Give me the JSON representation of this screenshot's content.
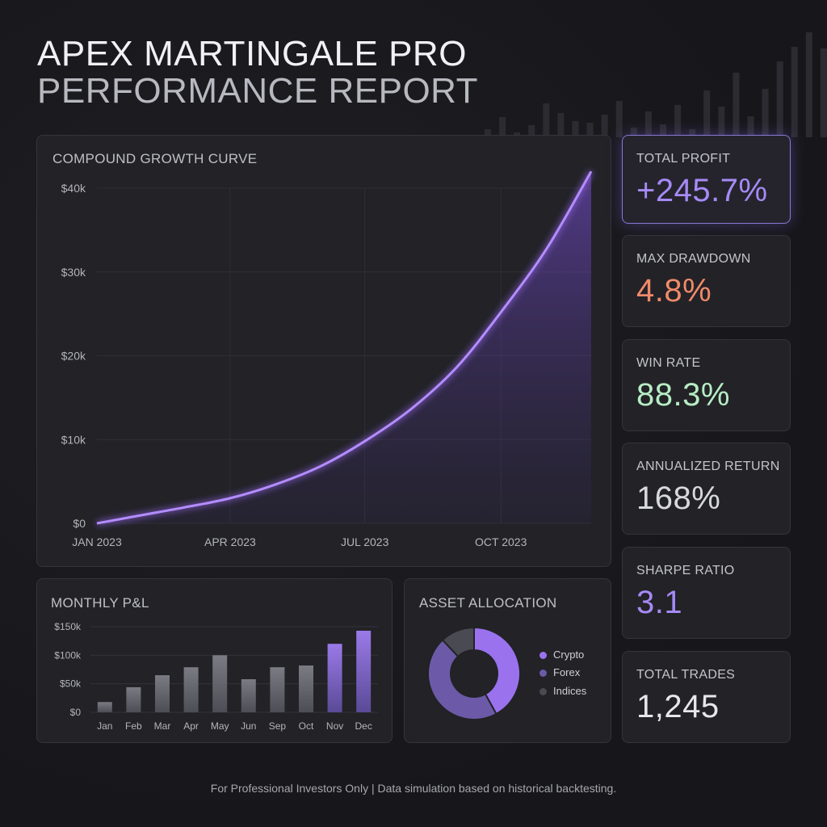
{
  "header": {
    "title_line1": "APEX MARTINGALE PRO",
    "title_line2": "PERFORMANCE REPORT"
  },
  "colors": {
    "accent": "#9b6cf5",
    "drawdown": "#f08a6a",
    "win": "#b7ecc4",
    "neutral": "#d8d9df"
  },
  "stats": [
    {
      "label": "TOTAL PROFIT",
      "value": "+245.7%",
      "color": "#a68af6"
    },
    {
      "label": "MAX DRAWDOWN",
      "value": "4.8%",
      "color": "#f08a6a"
    },
    {
      "label": "WIN RATE",
      "value": "88.3%",
      "color": "#b7ecc4"
    },
    {
      "label": "ANNUALIZED RETURN",
      "value": "168%",
      "color": "#d8d9df"
    },
    {
      "label": "SHARPE RATIO",
      "value": "3.1",
      "color": "#a68af6"
    },
    {
      "label": "TOTAL TRADES",
      "value": "1,245",
      "color": "#e6e7ec"
    }
  ],
  "footer": "For Professional Investors Only | Data simulation based on historical backtesting.",
  "chart_data": [
    {
      "type": "area",
      "title": "COMPOUND GROWTH CURVE",
      "x_tick_labels": [
        "JAN 2023",
        "APR 2023",
        "JUL 2023",
        "OCT 2023"
      ],
      "y_tick_labels": [
        "$0",
        "$10k",
        "$20k",
        "$30k",
        "$40k"
      ],
      "ylim": [
        0,
        40000
      ],
      "x": [
        "2023-01-01",
        "2023-02-01",
        "2023-03-01",
        "2023-04-01",
        "2023-05-01",
        "2023-06-01",
        "2023-07-01",
        "2023-08-01",
        "2023-09-01",
        "2023-10-01",
        "2023-11-01",
        "2023-12-01"
      ],
      "values": [
        0,
        1000,
        1900,
        3000,
        4600,
        6800,
        9800,
        13600,
        18600,
        25200,
        32800,
        42000
      ],
      "color": "#9b6cf5",
      "grid": true
    },
    {
      "type": "bar",
      "title": "MONTHLY P&L",
      "categories": [
        "Jan",
        "Feb",
        "Mar",
        "Apr",
        "May",
        "Jun",
        "Sep",
        "Oct",
        "Nov",
        "Dec"
      ],
      "values": [
        18000,
        44000,
        65000,
        79000,
        100000,
        58000,
        79000,
        82000,
        120000,
        143000
      ],
      "y_tick_labels": [
        "$0",
        "$50k",
        "$100k",
        "$150k"
      ],
      "ylim": [
        0,
        150000
      ],
      "highlight": [
        "Nov",
        "Dec"
      ]
    },
    {
      "type": "pie",
      "title": "ASSET ALLOCATION",
      "donut": true,
      "categories": [
        "Crypto",
        "Forex",
        "Indices"
      ],
      "values": [
        42,
        46,
        12
      ],
      "colors": [
        "#9a72ee",
        "#6c5aa8",
        "#4a4a52"
      ]
    }
  ]
}
